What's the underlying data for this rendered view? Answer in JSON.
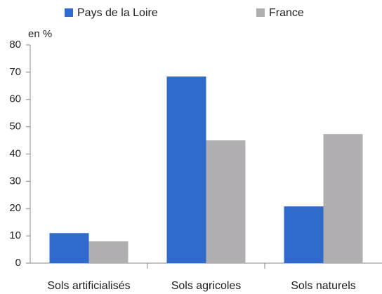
{
  "chart_data": {
    "type": "bar",
    "y_label": "en %",
    "categories": [
      "Sols artificialisés",
      "Sols agricoles",
      "Sols naturels"
    ],
    "series": [
      {
        "name": "Pays de la Loire",
        "color": "#2e6bcd",
        "values": [
          11,
          68.4,
          20.8
        ]
      },
      {
        "name": "France",
        "color": "#b0aeb0",
        "values": [
          8,
          45,
          47.3
        ]
      }
    ],
    "ylim": [
      0,
      80
    ],
    "yticks": [
      0,
      10,
      20,
      30,
      40,
      50,
      60,
      70,
      80
    ],
    "grid": false,
    "legend": "top"
  }
}
